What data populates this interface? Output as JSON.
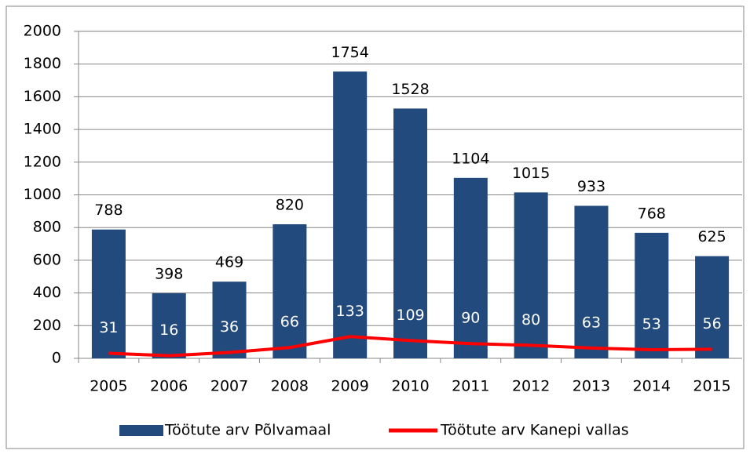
{
  "chart_data": {
    "type": "bar",
    "categories": [
      "2005",
      "2006",
      "2007",
      "2008",
      "2009",
      "2010",
      "2011",
      "2012",
      "2013",
      "2014",
      "2015"
    ],
    "series": [
      {
        "name": "Töötute arv Põlvamaal",
        "type": "bar",
        "color": "#234a7d",
        "values": [
          788,
          398,
          469,
          820,
          1754,
          1528,
          1104,
          1015,
          933,
          768,
          625
        ]
      },
      {
        "name": "Töötute arv Kanepi vallas",
        "type": "line",
        "color": "#ff0000",
        "values": [
          31,
          16,
          36,
          66,
          133,
          109,
          90,
          80,
          63,
          53,
          56
        ]
      }
    ],
    "ylim": [
      0,
      2000
    ],
    "yticks": [
      0,
      200,
      400,
      600,
      800,
      1000,
      1200,
      1400,
      1600,
      1800,
      2000
    ],
    "grid": true,
    "legend": "bottom"
  }
}
